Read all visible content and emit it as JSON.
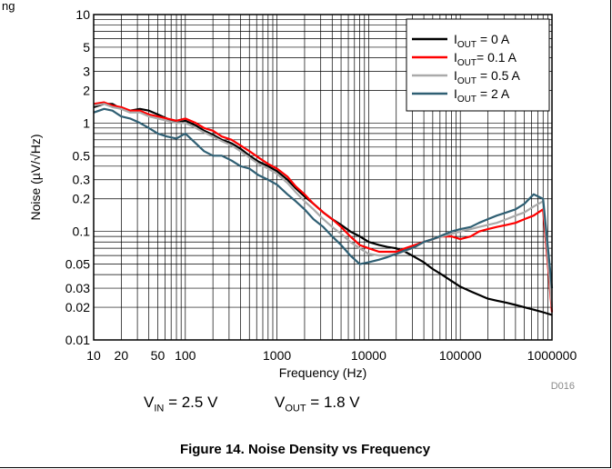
{
  "header_fragment": "ng",
  "figure_id": "D016",
  "conditions": {
    "vin_sym": "V",
    "vin_sub": "IN",
    "vin_rest": " = 2.5 V",
    "vout_sym": "V",
    "vout_sub": "OUT",
    "vout_rest": " = 1.8 V"
  },
  "caption": "Figure 14. Noise Density vs Frequency",
  "chart_data": {
    "type": "line",
    "title": "",
    "xlabel": "Frequency (Hz)",
    "ylabel": "Noise (µV/√Hz)",
    "x_scale": "log",
    "y_scale": "log",
    "xlim": [
      10,
      1000000
    ],
    "ylim": [
      0.01,
      10
    ],
    "grid": true,
    "legend_position": "top-right",
    "x_ticks": [
      {
        "value": 10,
        "label": "10"
      },
      {
        "value": 20,
        "label": "20"
      },
      {
        "value": 50,
        "label": "50"
      },
      {
        "value": 100,
        "label": "100"
      },
      {
        "value": 1000,
        "label": "1000"
      },
      {
        "value": 10000,
        "label": "10000"
      },
      {
        "value": 100000,
        "label": "100000"
      },
      {
        "value": 1000000,
        "label": "1000000"
      }
    ],
    "y_ticks": [
      {
        "value": 0.01,
        "label": "0.01"
      },
      {
        "value": 0.02,
        "label": "0.02"
      },
      {
        "value": 0.03,
        "label": "0.03"
      },
      {
        "value": 0.05,
        "label": "0.05"
      },
      {
        "value": 0.1,
        "label": "0.1"
      },
      {
        "value": 0.2,
        "label": "0.2"
      },
      {
        "value": 0.3,
        "label": "0.3"
      },
      {
        "value": 0.5,
        "label": "0.5"
      },
      {
        "value": 1,
        "label": "1"
      },
      {
        "value": 2,
        "label": "2"
      },
      {
        "value": 3,
        "label": "3"
      },
      {
        "value": 5,
        "label": "5"
      },
      {
        "value": 10,
        "label": "10"
      }
    ],
    "series": [
      {
        "name": "I_OUT = 0 A",
        "legend": {
          "sym": "I",
          "sub": "OUT",
          "rest": " = 0 A"
        },
        "color": "#000000",
        "x": [
          10,
          13,
          16,
          20,
          25,
          32,
          40,
          50,
          63,
          80,
          100,
          130,
          160,
          200,
          250,
          320,
          400,
          500,
          630,
          800,
          1000,
          1300,
          1600,
          2000,
          2500,
          3200,
          4000,
          5000,
          6300,
          8000,
          10000,
          13000,
          16000,
          20000,
          25000,
          32000,
          40000,
          50000,
          63000,
          80000,
          100000,
          130000,
          160000,
          200000,
          250000,
          320000,
          400000,
          500000,
          630000,
          800000,
          1000000
        ],
        "y": [
          1.4,
          1.5,
          1.5,
          1.35,
          1.3,
          1.35,
          1.3,
          1.2,
          1.1,
          1.0,
          1.05,
          0.95,
          0.85,
          0.78,
          0.7,
          0.65,
          0.58,
          0.5,
          0.44,
          0.4,
          0.36,
          0.3,
          0.25,
          0.21,
          0.18,
          0.15,
          0.13,
          0.115,
          0.1,
          0.09,
          0.08,
          0.075,
          0.072,
          0.07,
          0.065,
          0.058,
          0.052,
          0.045,
          0.04,
          0.035,
          0.031,
          0.028,
          0.026,
          0.024,
          0.023,
          0.022,
          0.021,
          0.02,
          0.019,
          0.018,
          0.017
        ]
      },
      {
        "name": "I_OUT = 0.1 A",
        "legend": {
          "sym": "I",
          "sub": "OUT",
          "rest": "= 0.1 A"
        },
        "color": "#ff0000",
        "x": [
          10,
          13,
          16,
          20,
          25,
          32,
          40,
          50,
          63,
          80,
          100,
          130,
          160,
          200,
          250,
          320,
          400,
          500,
          630,
          800,
          1000,
          1300,
          1600,
          2000,
          2500,
          3200,
          4000,
          5000,
          6300,
          8000,
          10000,
          13000,
          16000,
          20000,
          25000,
          32000,
          40000,
          50000,
          63000,
          80000,
          100000,
          130000,
          160000,
          200000,
          250000,
          320000,
          400000,
          500000,
          630000,
          800000,
          1000000
        ],
        "y": [
          1.5,
          1.55,
          1.45,
          1.4,
          1.3,
          1.3,
          1.2,
          1.15,
          1.1,
          1.05,
          1.1,
          1.0,
          0.9,
          0.85,
          0.75,
          0.7,
          0.62,
          0.55,
          0.48,
          0.42,
          0.38,
          0.32,
          0.26,
          0.22,
          0.18,
          0.15,
          0.13,
          0.11,
          0.09,
          0.075,
          0.07,
          0.065,
          0.065,
          0.065,
          0.07,
          0.075,
          0.08,
          0.085,
          0.09,
          0.09,
          0.085,
          0.09,
          0.1,
          0.105,
          0.11,
          0.115,
          0.12,
          0.13,
          0.14,
          0.16,
          0.018
        ]
      },
      {
        "name": "I_OUT = 0.5 A",
        "legend": {
          "sym": "I",
          "sub": "OUT",
          "rest": " = 0.5 A"
        },
        "color": "#aaaaaa",
        "x": [
          10,
          13,
          16,
          20,
          25,
          32,
          40,
          50,
          63,
          80,
          100,
          130,
          160,
          200,
          250,
          320,
          400,
          500,
          630,
          800,
          1000,
          1300,
          1600,
          2000,
          2500,
          3200,
          4000,
          5000,
          6300,
          8000,
          10000,
          13000,
          16000,
          20000,
          25000,
          32000,
          40000,
          50000,
          63000,
          80000,
          100000,
          130000,
          160000,
          200000,
          250000,
          320000,
          400000,
          500000,
          630000,
          800000,
          1000000
        ],
        "y": [
          1.45,
          1.5,
          1.4,
          1.35,
          1.25,
          1.25,
          1.15,
          1.1,
          1.05,
          1.0,
          1.0,
          0.9,
          0.82,
          0.75,
          0.68,
          0.62,
          0.55,
          0.48,
          0.42,
          0.38,
          0.34,
          0.28,
          0.23,
          0.19,
          0.16,
          0.13,
          0.11,
          0.095,
          0.08,
          0.07,
          0.062,
          0.06,
          0.06,
          0.062,
          0.066,
          0.072,
          0.08,
          0.085,
          0.09,
          0.095,
          0.1,
          0.105,
          0.11,
          0.115,
          0.12,
          0.13,
          0.14,
          0.15,
          0.17,
          0.19,
          0.02
        ]
      },
      {
        "name": "I_OUT = 2 A",
        "legend": {
          "sym": "I",
          "sub": "OUT",
          "rest": " = 2 A"
        },
        "color": "#2f5f73",
        "x": [
          10,
          13,
          16,
          20,
          25,
          32,
          40,
          50,
          63,
          80,
          100,
          130,
          160,
          200,
          250,
          320,
          400,
          500,
          630,
          800,
          1000,
          1300,
          1600,
          2000,
          2500,
          3200,
          4000,
          5000,
          6300,
          8000,
          10000,
          13000,
          16000,
          20000,
          25000,
          32000,
          40000,
          50000,
          63000,
          80000,
          100000,
          130000,
          160000,
          200000,
          250000,
          320000,
          400000,
          500000,
          630000,
          800000,
          1000000
        ],
        "y": [
          1.25,
          1.35,
          1.3,
          1.15,
          1.1,
          1.0,
          0.9,
          0.8,
          0.75,
          0.72,
          0.8,
          0.65,
          0.55,
          0.5,
          0.5,
          0.45,
          0.4,
          0.38,
          0.33,
          0.3,
          0.27,
          0.22,
          0.19,
          0.16,
          0.13,
          0.11,
          0.09,
          0.075,
          0.06,
          0.05,
          0.052,
          0.055,
          0.058,
          0.062,
          0.067,
          0.072,
          0.08,
          0.085,
          0.092,
          0.1,
          0.105,
          0.11,
          0.12,
          0.13,
          0.14,
          0.15,
          0.16,
          0.18,
          0.22,
          0.2,
          0.03
        ]
      }
    ]
  }
}
